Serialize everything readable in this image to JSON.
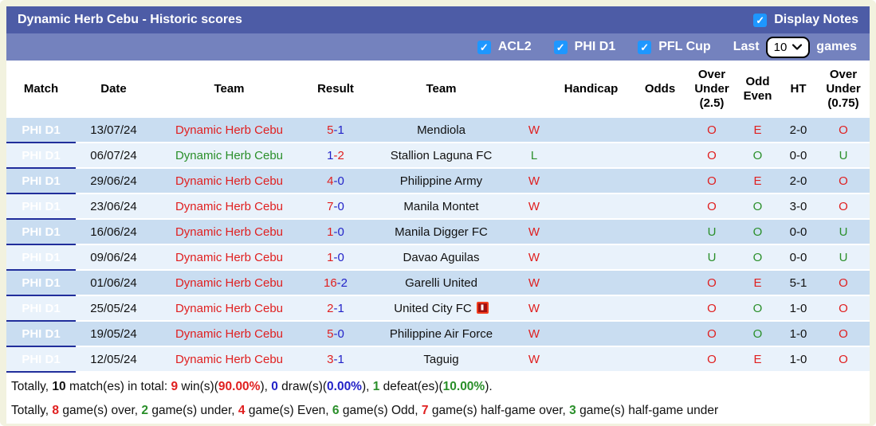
{
  "title_bar": {
    "title": "Dynamic Herb Cebu - Historic scores",
    "display_notes_label": "Display Notes",
    "display_notes_checked": true
  },
  "filter_bar": {
    "filters": [
      {
        "label": "ACL2",
        "checked": true
      },
      {
        "label": "PHI D1",
        "checked": true
      },
      {
        "label": "PFL Cup",
        "checked": true
      }
    ],
    "last_label": "Last",
    "games_count": "10",
    "games_label": "games"
  },
  "colors": {
    "title_bar": "#4d5ca6",
    "filter_bar": "#7482be",
    "match_badge_navy": "#212e9b",
    "row_light_blue": "#c9ddf1",
    "row_pale_blue": "#e9f2fb",
    "accent_red": "#e01f1f",
    "accent_green": "#2a8f2a",
    "score_blue": "#2323c8",
    "checkbox_blue": "#1e97ff",
    "page_background": "#f2f2df"
  },
  "table": {
    "headers": [
      "Match",
      "Date",
      "Team",
      "Result",
      "Team",
      "",
      "Handicap",
      "Odds",
      "Over Under (2.5)",
      "Odd Even",
      "HT",
      "Over Under (0.75)"
    ],
    "rows": [
      {
        "match": "PHI D1",
        "date": "13/07/24",
        "team": "Dynamic Herb Cebu",
        "team_color": "red",
        "score_home": "5",
        "score_home_color": "red",
        "score_away": "-1",
        "score_away_color": "blue",
        "opponent": "Mendiola",
        "opponent_icon": false,
        "wl": "W",
        "wl_color": "red",
        "handicap": "",
        "odds": "",
        "over_under_25": "O",
        "over_under_25_color": "red",
        "odd_even": "E",
        "odd_even_color": "red",
        "ht": "2-0",
        "over_under_075": "O",
        "over_under_075_color": "red"
      },
      {
        "match": "PHI D1",
        "date": "06/07/24",
        "team": "Dynamic Herb Cebu",
        "team_color": "green",
        "score_home": "1",
        "score_home_color": "blue",
        "score_away": "-2",
        "score_away_color": "red",
        "opponent": "Stallion Laguna FC",
        "opponent_icon": false,
        "wl": "L",
        "wl_color": "green",
        "handicap": "",
        "odds": "",
        "over_under_25": "O",
        "over_under_25_color": "red",
        "odd_even": "O",
        "odd_even_color": "green",
        "ht": "0-0",
        "over_under_075": "U",
        "over_under_075_color": "green"
      },
      {
        "match": "PHI D1",
        "date": "29/06/24",
        "team": "Dynamic Herb Cebu",
        "team_color": "red",
        "score_home": "4",
        "score_home_color": "red",
        "score_away": "-0",
        "score_away_color": "blue",
        "opponent": "Philippine Army",
        "opponent_icon": false,
        "wl": "W",
        "wl_color": "red",
        "handicap": "",
        "odds": "",
        "over_under_25": "O",
        "over_under_25_color": "red",
        "odd_even": "E",
        "odd_even_color": "red",
        "ht": "2-0",
        "over_under_075": "O",
        "over_under_075_color": "red"
      },
      {
        "match": "PHI D1",
        "date": "23/06/24",
        "team": "Dynamic Herb Cebu",
        "team_color": "red",
        "score_home": "7",
        "score_home_color": "red",
        "score_away": "-0",
        "score_away_color": "blue",
        "opponent": "Manila Montet",
        "opponent_icon": false,
        "wl": "W",
        "wl_color": "red",
        "handicap": "",
        "odds": "",
        "over_under_25": "O",
        "over_under_25_color": "red",
        "odd_even": "O",
        "odd_even_color": "green",
        "ht": "3-0",
        "over_under_075": "O",
        "over_under_075_color": "red"
      },
      {
        "match": "PHI D1",
        "date": "16/06/24",
        "team": "Dynamic Herb Cebu",
        "team_color": "red",
        "score_home": "1",
        "score_home_color": "red",
        "score_away": "-0",
        "score_away_color": "blue",
        "opponent": "Manila Digger FC",
        "opponent_icon": false,
        "wl": "W",
        "wl_color": "red",
        "handicap": "",
        "odds": "",
        "over_under_25": "U",
        "over_under_25_color": "green",
        "odd_even": "O",
        "odd_even_color": "green",
        "ht": "0-0",
        "over_under_075": "U",
        "over_under_075_color": "green"
      },
      {
        "match": "PHI D1",
        "date": "09/06/24",
        "team": "Dynamic Herb Cebu",
        "team_color": "red",
        "score_home": "1",
        "score_home_color": "red",
        "score_away": "-0",
        "score_away_color": "blue",
        "opponent": "Davao Aguilas",
        "opponent_icon": false,
        "wl": "W",
        "wl_color": "red",
        "handicap": "",
        "odds": "",
        "over_under_25": "U",
        "over_under_25_color": "green",
        "odd_even": "O",
        "odd_even_color": "green",
        "ht": "0-0",
        "over_under_075": "U",
        "over_under_075_color": "green"
      },
      {
        "match": "PHI D1",
        "date": "01/06/24",
        "team": "Dynamic Herb Cebu",
        "team_color": "red",
        "score_home": "16",
        "score_home_color": "red",
        "score_away": "-2",
        "score_away_color": "blue",
        "opponent": "Garelli United",
        "opponent_icon": false,
        "wl": "W",
        "wl_color": "red",
        "handicap": "",
        "odds": "",
        "over_under_25": "O",
        "over_under_25_color": "red",
        "odd_even": "E",
        "odd_even_color": "red",
        "ht": "5-1",
        "over_under_075": "O",
        "over_under_075_color": "red"
      },
      {
        "match": "PHI D1",
        "date": "25/05/24",
        "team": "Dynamic Herb Cebu",
        "team_color": "red",
        "score_home": "2",
        "score_home_color": "red",
        "score_away": "-1",
        "score_away_color": "blue",
        "opponent": "United City FC",
        "opponent_icon": true,
        "wl": "W",
        "wl_color": "red",
        "handicap": "",
        "odds": "",
        "over_under_25": "O",
        "over_under_25_color": "red",
        "odd_even": "O",
        "odd_even_color": "green",
        "ht": "1-0",
        "over_under_075": "O",
        "over_under_075_color": "red"
      },
      {
        "match": "PHI D1",
        "date": "19/05/24",
        "team": "Dynamic Herb Cebu",
        "team_color": "red",
        "score_home": "5",
        "score_home_color": "red",
        "score_away": "-0",
        "score_away_color": "blue",
        "opponent": "Philippine Air Force",
        "opponent_icon": false,
        "wl": "W",
        "wl_color": "red",
        "handicap": "",
        "odds": "",
        "over_under_25": "O",
        "over_under_25_color": "red",
        "odd_even": "O",
        "odd_even_color": "green",
        "ht": "1-0",
        "over_under_075": "O",
        "over_under_075_color": "red"
      },
      {
        "match": "PHI D1",
        "date": "12/05/24",
        "team": "Dynamic Herb Cebu",
        "team_color": "red",
        "score_home": "3",
        "score_home_color": "red",
        "score_away": "-1",
        "score_away_color": "blue",
        "opponent": "Taguig",
        "opponent_icon": false,
        "wl": "W",
        "wl_color": "red",
        "handicap": "",
        "odds": "",
        "over_under_25": "O",
        "over_under_25_color": "red",
        "odd_even": "E",
        "odd_even_color": "red",
        "ht": "1-0",
        "over_under_075": "O",
        "over_under_075_color": "red"
      }
    ]
  },
  "summary_lines": [
    [
      {
        "t": "Totally, "
      },
      {
        "t": "10",
        "c": "black",
        "b": true
      },
      {
        "t": " match(es) in total: "
      },
      {
        "t": "9",
        "c": "red",
        "b": true
      },
      {
        "t": " win(s)("
      },
      {
        "t": "90.00%",
        "c": "red",
        "b": true
      },
      {
        "t": "), "
      },
      {
        "t": "0",
        "c": "blue",
        "b": true
      },
      {
        "t": " draw(s)("
      },
      {
        "t": "0.00%",
        "c": "blue",
        "b": true
      },
      {
        "t": "), "
      },
      {
        "t": "1",
        "c": "green",
        "b": true
      },
      {
        "t": " defeat(es)("
      },
      {
        "t": "10.00%",
        "c": "green",
        "b": true
      },
      {
        "t": ")."
      }
    ],
    [
      {
        "t": "Totally, "
      },
      {
        "t": "8",
        "c": "red",
        "b": true
      },
      {
        "t": " game(s) over, "
      },
      {
        "t": "2",
        "c": "green",
        "b": true
      },
      {
        "t": " game(s) under, "
      },
      {
        "t": "4",
        "c": "red",
        "b": true
      },
      {
        "t": " game(s) Even, "
      },
      {
        "t": "6",
        "c": "green",
        "b": true
      },
      {
        "t": " game(s) Odd, "
      },
      {
        "t": "7",
        "c": "red",
        "b": true
      },
      {
        "t": " game(s) half-game over, "
      },
      {
        "t": "3",
        "c": "green",
        "b": true
      },
      {
        "t": " game(s) half-game under"
      }
    ]
  ]
}
